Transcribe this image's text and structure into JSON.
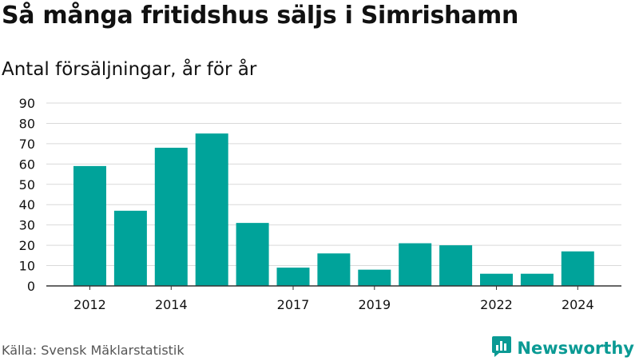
{
  "header": {
    "title": "Så många fritidshus säljs i Simrishamn",
    "subtitle": "Antal försäljningar, år för år"
  },
  "footer": {
    "source": "Källa: Svensk Mäklarstatistik",
    "brand": "Newsworthy"
  },
  "colors": {
    "bar": "#00a39a",
    "grid": "#d9d9d9",
    "axis": "#333333",
    "brand": "#0a9a94"
  },
  "chart_data": {
    "type": "bar",
    "title": "Så många fritidshus säljs i Simrishamn",
    "subtitle": "Antal försäljningar, år för år",
    "xlabel": "",
    "ylabel": "",
    "categories": [
      "2012",
      "2013",
      "2014",
      "2015",
      "2016",
      "2017",
      "2018",
      "2019",
      "2020",
      "2021",
      "2022",
      "2023",
      "2024"
    ],
    "values": [
      59,
      37,
      68,
      75,
      31,
      9,
      16,
      8,
      21,
      20,
      6,
      6,
      17
    ],
    "x_tick_labels": [
      "2012",
      "2014",
      "2017",
      "2019",
      "2022",
      "2024"
    ],
    "y_ticks": [
      0,
      10,
      20,
      30,
      40,
      50,
      60,
      70,
      80,
      90
    ],
    "ylim": [
      0,
      90
    ],
    "grid": true,
    "legend": "none"
  }
}
